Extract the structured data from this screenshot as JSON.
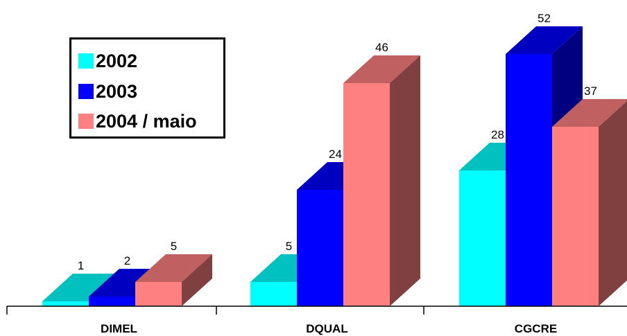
{
  "chart_data": {
    "type": "bar",
    "categories": [
      "DIMEL",
      "DQUAL",
      "CGCRE"
    ],
    "series": [
      {
        "name": "2002",
        "values": [
          1,
          5,
          28
        ],
        "color": "#00FFFF",
        "side": "#009999",
        "top": "#00C0C0"
      },
      {
        "name": "2003",
        "values": [
          2,
          24,
          52
        ],
        "color": "#0000FF",
        "side": "#000080",
        "top": "#0000C0"
      },
      {
        "name": "2004 / maio",
        "values": [
          5,
          46,
          37
        ],
        "color": "#FF8080",
        "side": "#804040",
        "top": "#C06060"
      }
    ],
    "title": "",
    "xlabel": "",
    "ylabel": "",
    "ylim": [
      0,
      52
    ],
    "grid": false,
    "legend": "top-left",
    "style": "3d-column"
  }
}
